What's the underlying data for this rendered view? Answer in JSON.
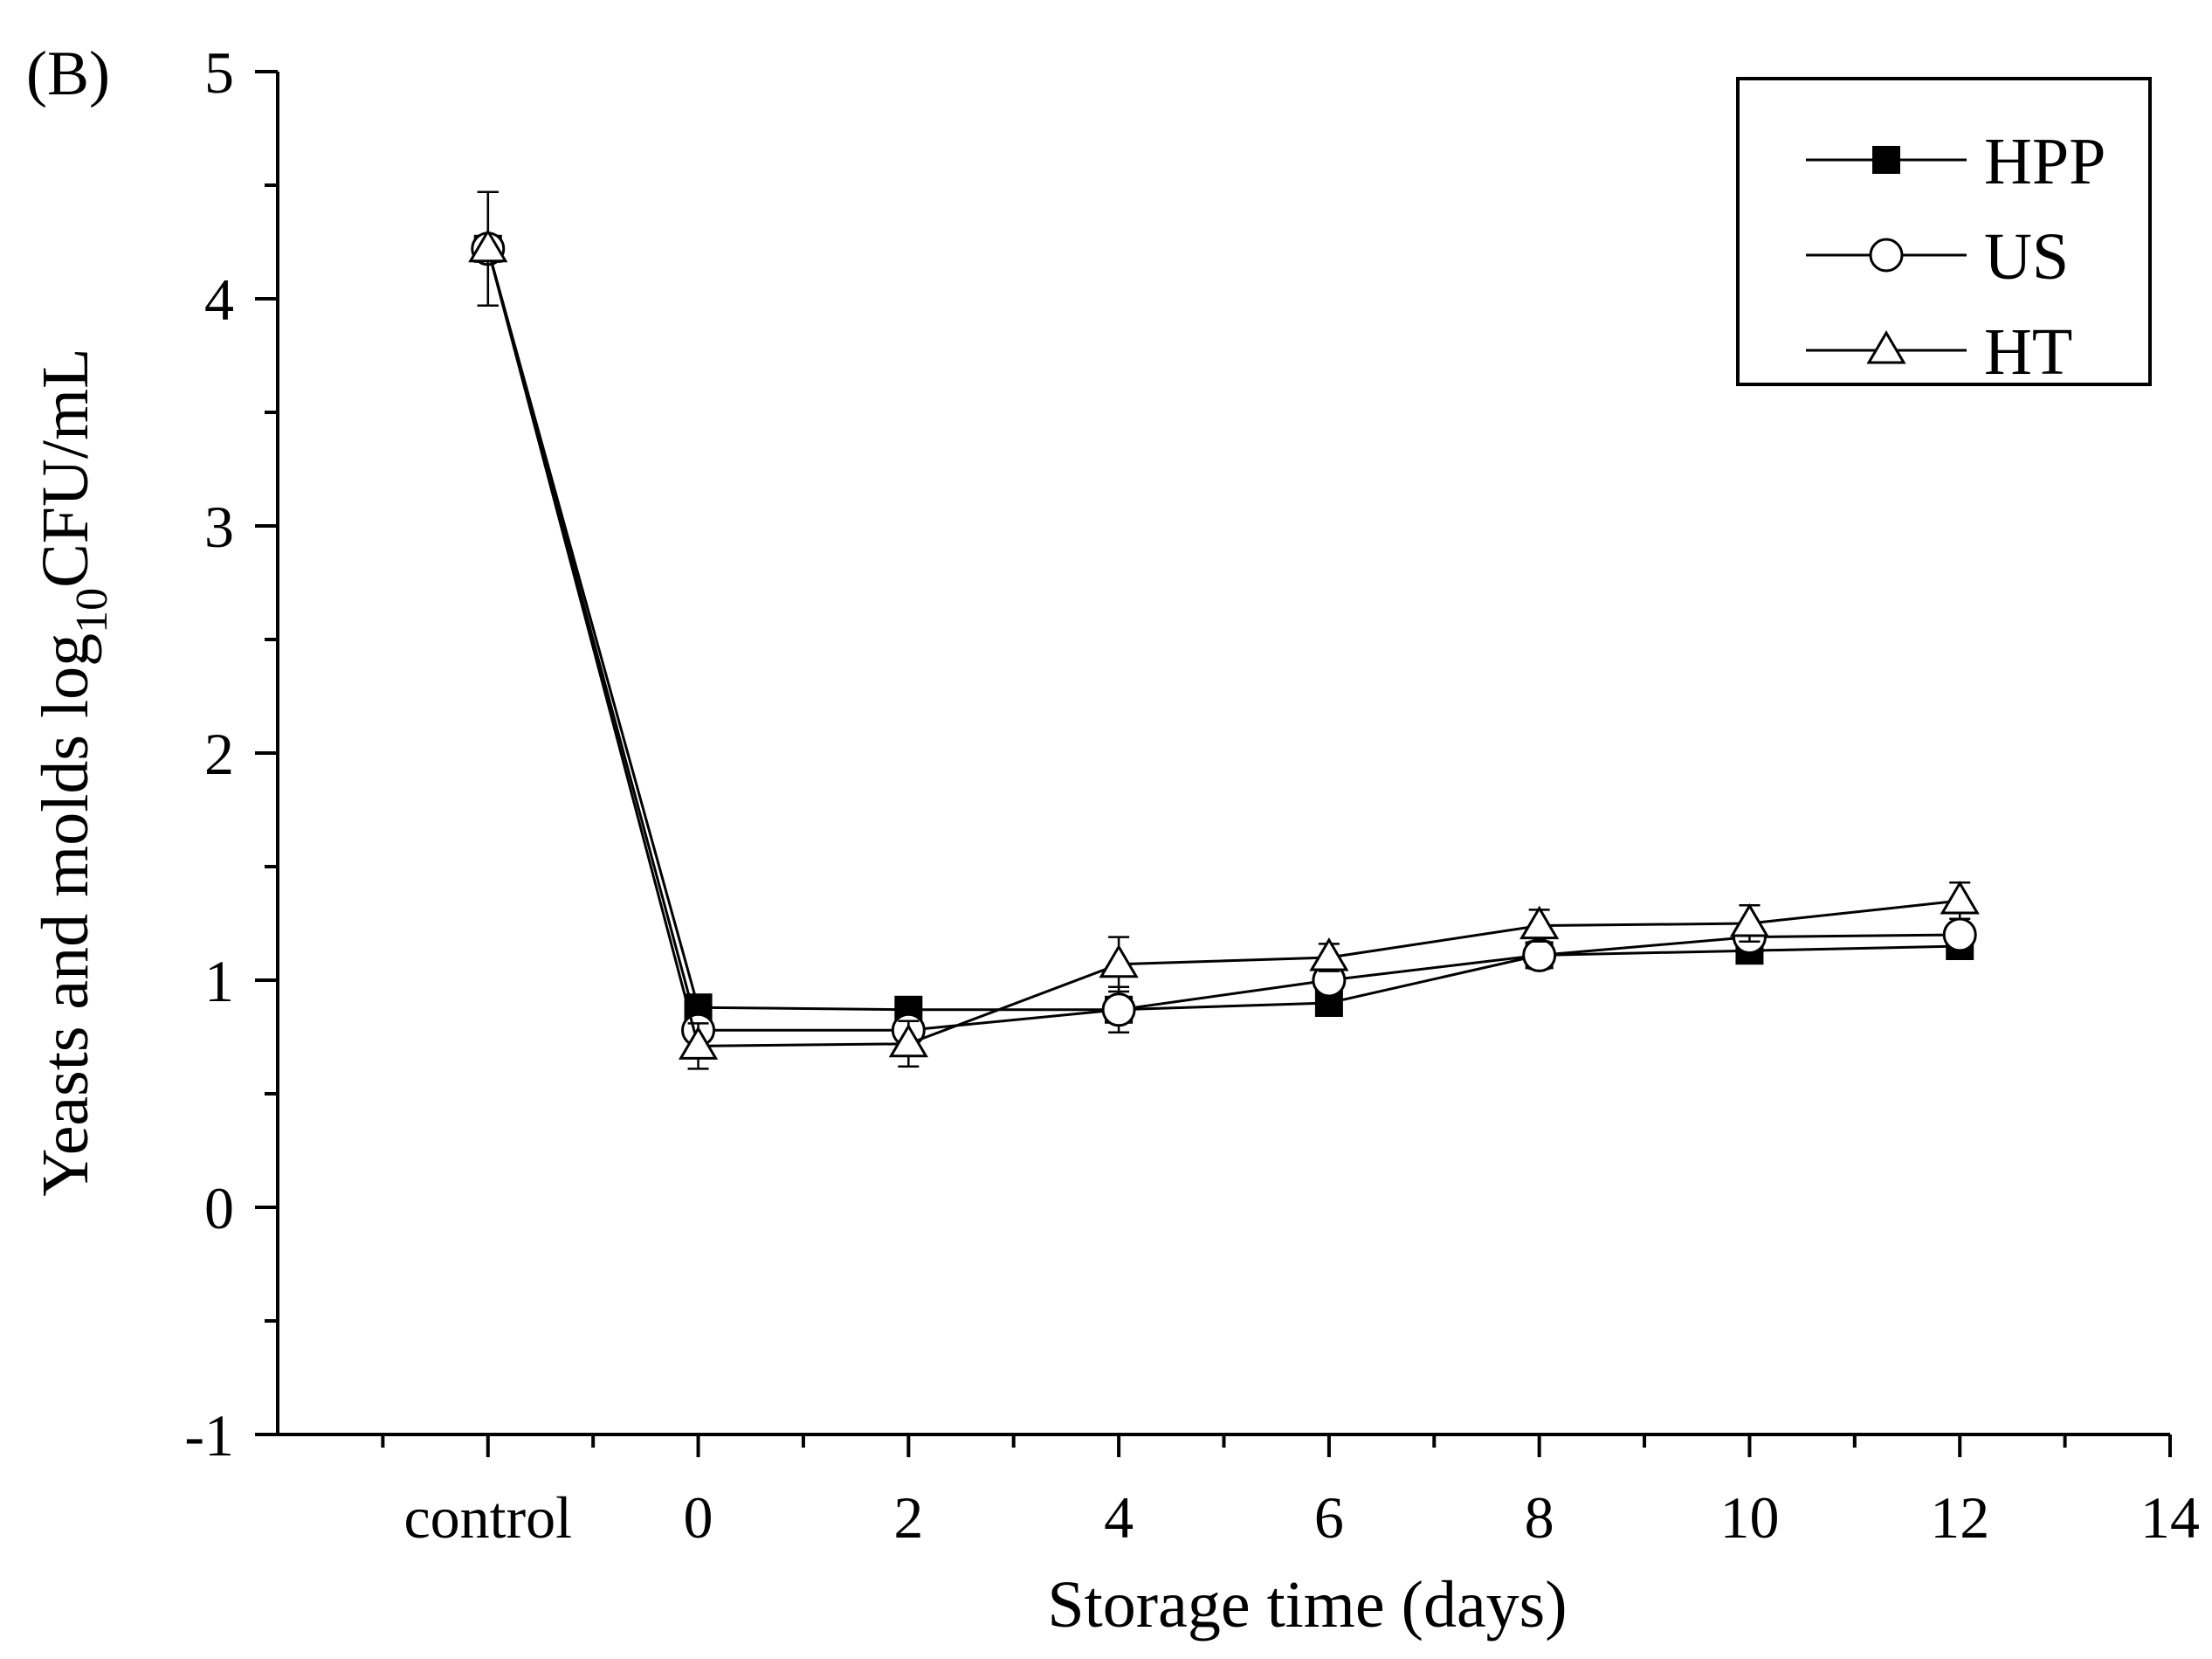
{
  "panel_label": "(B)",
  "chart_data": {
    "type": "line",
    "title": "",
    "xlabel": "Storage time (days)",
    "ylabel_main": "Yeasts and molds log",
    "ylabel_sub": "10",
    "ylabel_unit": "CFU/mL",
    "xlim": [
      -4,
      14
    ],
    "ylim": [
      -1,
      5
    ],
    "x_major_ticks": [
      -2,
      0,
      2,
      4,
      6,
      8,
      10,
      12,
      14
    ],
    "x_tick_labels": [
      "control",
      "0",
      "2",
      "4",
      "6",
      "8",
      "10",
      "12",
      "14"
    ],
    "x_minor_ticks": [
      -3,
      -1,
      1,
      3,
      5,
      7,
      9,
      11,
      13
    ],
    "y_major_ticks": [
      -1,
      0,
      1,
      2,
      3,
      4,
      5
    ],
    "y_tick_labels": [
      "-1",
      "0",
      "1",
      "2",
      "3",
      "4",
      "5"
    ],
    "y_minor_ticks": [
      -0.5,
      0.5,
      1.5,
      2.5,
      3.5,
      4.5
    ],
    "grid": false,
    "legend_position": "top-right",
    "x": [
      -2,
      0,
      2,
      4,
      6,
      8,
      10,
      12
    ],
    "series": [
      {
        "name": "HPP",
        "marker": "filled-square",
        "values": [
          4.22,
          0.88,
          0.87,
          0.87,
          0.9,
          1.11,
          1.13,
          1.15
        ],
        "errors": [
          0.25,
          0.04,
          0.03,
          0.03,
          0.04,
          0.05,
          0.04,
          0.04
        ]
      },
      {
        "name": "US",
        "marker": "open-circle",
        "values": [
          4.22,
          0.78,
          0.78,
          0.87,
          1.0,
          1.11,
          1.19,
          1.2
        ],
        "errors": [
          0.25,
          0.04,
          0.04,
          0.1,
          0.1,
          0.06,
          0.06,
          0.05
        ]
      },
      {
        "name": "HT",
        "marker": "open-triangle",
        "values": [
          4.22,
          0.71,
          0.72,
          1.07,
          1.1,
          1.24,
          1.25,
          1.35
        ],
        "errors": [
          0.25,
          0.1,
          0.1,
          0.12,
          0.06,
          0.07,
          0.08,
          0.08
        ]
      }
    ]
  }
}
